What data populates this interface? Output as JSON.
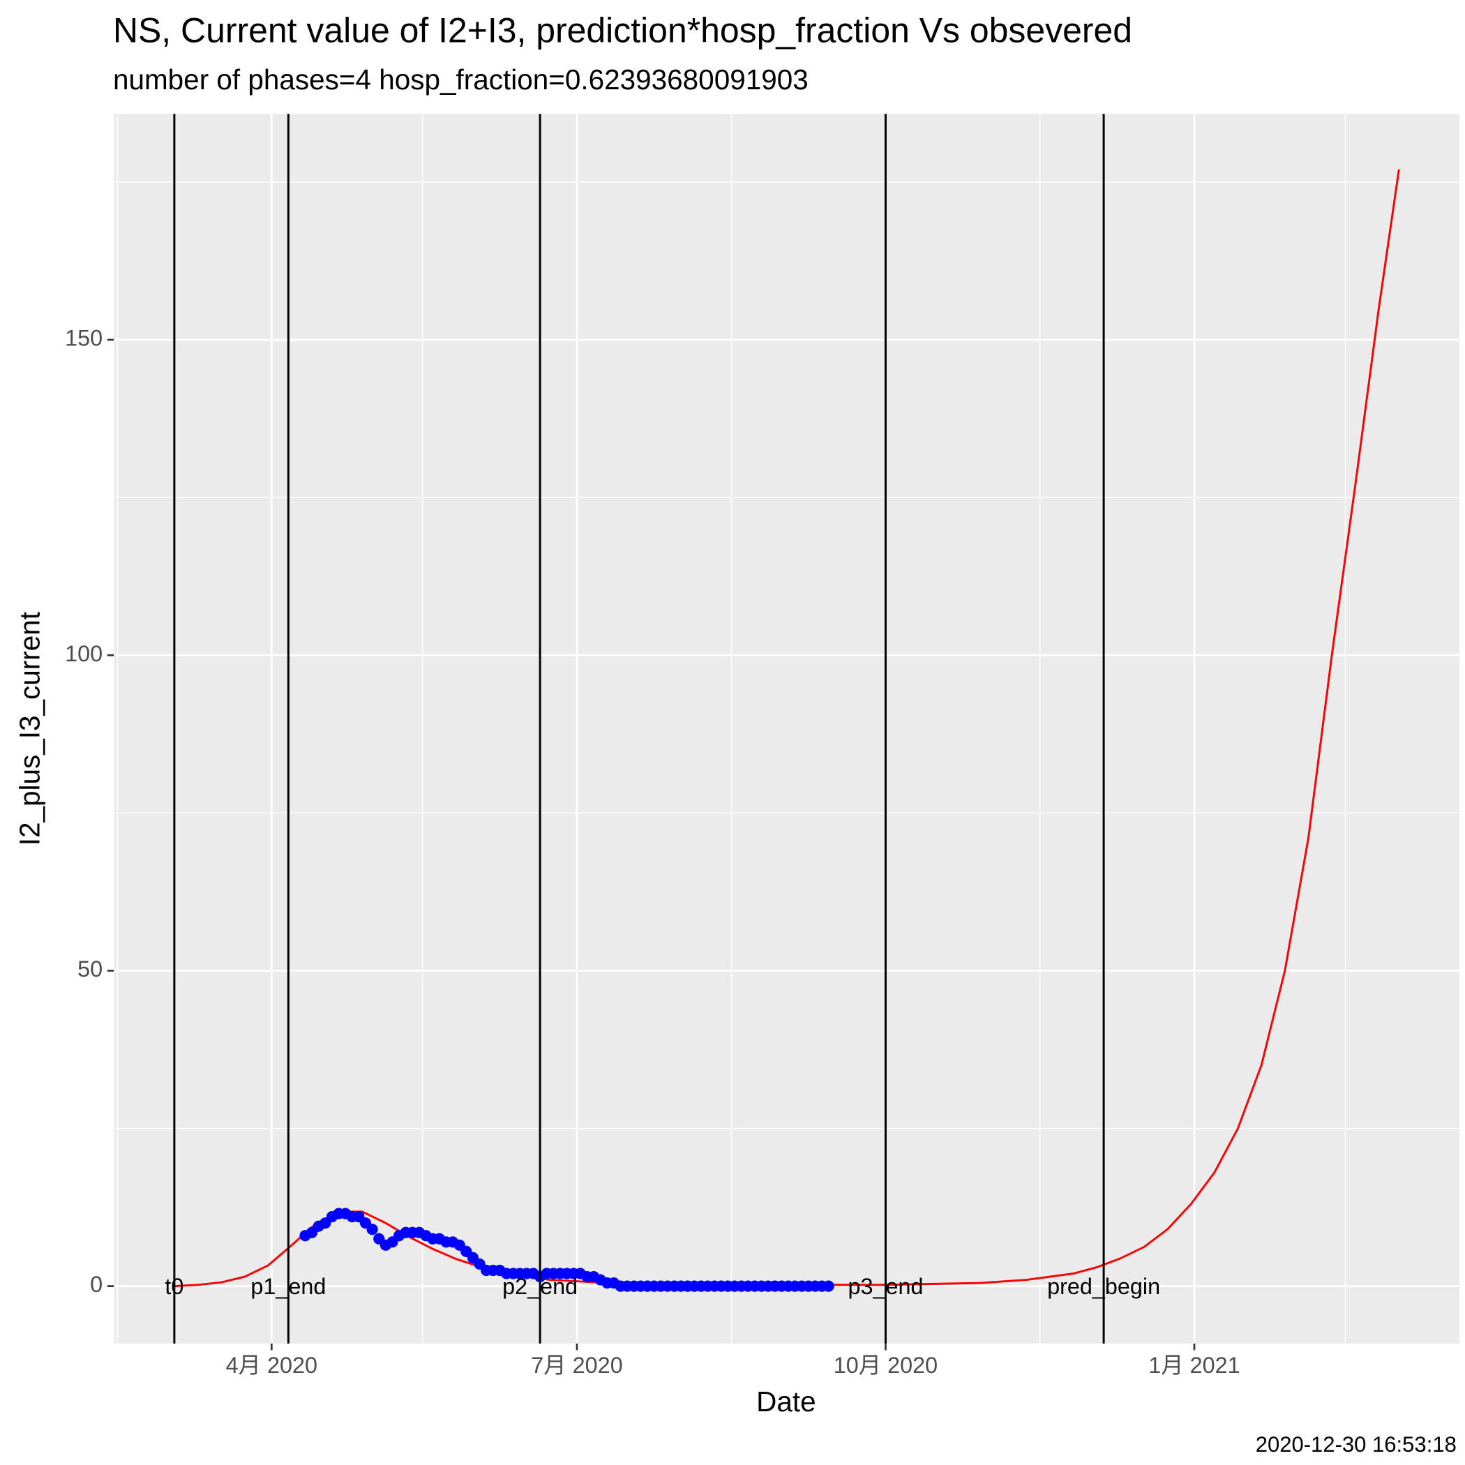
{
  "chart_data": {
    "type": "line",
    "title": "NS, Current value of I2+I3, prediction*hosp_fraction Vs obsevered",
    "subtitle": "number of phases=4   hosp_fraction=0.62393680091903",
    "x_label": "Date",
    "y_label": "I2_plus_I3_current",
    "caption": "2020-12-30 16:53:18",
    "xlim": [
      "2020-02-14",
      "2021-03-21"
    ],
    "xticks": [
      {
        "value": "2020-04-01",
        "label": "4月 2020"
      },
      {
        "value": "2020-07-01",
        "label": "7月 2020"
      },
      {
        "value": "2020-10-01",
        "label": "10月 2020"
      },
      {
        "value": "2021-01-01",
        "label": "1月 2021"
      }
    ],
    "xminor": [
      "2020-02-15",
      "2020-05-16",
      "2020-08-16",
      "2020-11-16",
      "2021-02-15"
    ],
    "ylim": [
      -9.1,
      185.8
    ],
    "yticks": [
      0,
      50,
      100,
      150
    ],
    "yminor": [
      25,
      75,
      125,
      175
    ],
    "grid": true,
    "vline_label_y": 0,
    "vlines": [
      {
        "x": "2020-03-03",
        "label": "t0"
      },
      {
        "x": "2020-04-06",
        "label": "p1_end"
      },
      {
        "x": "2020-06-20",
        "label": "p2_end"
      },
      {
        "x": "2020-10-01",
        "label": "p3_end"
      },
      {
        "x": "2020-12-05",
        "label": "pred_begin"
      }
    ],
    "series": [
      {
        "color": "#ff0000",
        "marker": false,
        "x": [
          "2020-03-03",
          "2020-03-10",
          "2020-03-17",
          "2020-03-24",
          "2020-03-31",
          "2020-04-07",
          "2020-04-14",
          "2020-04-21",
          "2020-04-28",
          "2020-05-05",
          "2020-05-12",
          "2020-05-19",
          "2020-05-26",
          "2020-06-02",
          "2020-06-09",
          "2020-06-16",
          "2020-06-23",
          "2020-07-07",
          "2020-07-21",
          "2020-08-04",
          "2020-09-01",
          "2020-10-01",
          "2020-10-29",
          "2020-11-12",
          "2020-11-26",
          "2020-12-03",
          "2020-12-10",
          "2020-12-17",
          "2020-12-24",
          "2020-12-31",
          "2021-01-07",
          "2021-01-14",
          "2021-01-21",
          "2021-01-28",
          "2021-02-04",
          "2021-02-11",
          "2021-02-18",
          "2021-02-25",
          "2021-03-03"
        ],
        "values": [
          0,
          0.2,
          0.6,
          1.5,
          3.3,
          6.5,
          9.8,
          11.8,
          11.8,
          10.0,
          7.8,
          5.9,
          4.3,
          3.1,
          2.2,
          1.5,
          1.0,
          0.6,
          0.4,
          0.3,
          0.2,
          0.2,
          0.5,
          1.0,
          2.0,
          3.0,
          4.4,
          6.2,
          9,
          13,
          18,
          25,
          35,
          50,
          71,
          100,
          127,
          155,
          177
        ]
      },
      {
        "color": "#0000ff",
        "marker": true,
        "x": [
          "2020-04-11",
          "2020-04-13",
          "2020-04-15",
          "2020-04-17",
          "2020-04-19",
          "2020-04-21",
          "2020-04-23",
          "2020-04-25",
          "2020-04-27",
          "2020-04-29",
          "2020-05-01",
          "2020-05-03",
          "2020-05-05",
          "2020-05-07",
          "2020-05-09",
          "2020-05-11",
          "2020-05-13",
          "2020-05-15",
          "2020-05-17",
          "2020-05-19",
          "2020-05-21",
          "2020-05-23",
          "2020-05-25",
          "2020-05-27",
          "2020-05-29",
          "2020-05-31",
          "2020-06-02",
          "2020-06-04",
          "2020-06-06",
          "2020-06-08",
          "2020-06-10",
          "2020-06-12",
          "2020-06-14",
          "2020-06-16",
          "2020-06-18",
          "2020-06-20",
          "2020-06-22",
          "2020-06-24",
          "2020-06-26",
          "2020-06-28",
          "2020-06-30",
          "2020-07-02",
          "2020-07-04",
          "2020-07-06",
          "2020-07-08",
          "2020-07-10",
          "2020-07-12",
          "2020-07-14",
          "2020-07-16",
          "2020-07-18",
          "2020-07-20",
          "2020-07-22",
          "2020-07-24",
          "2020-07-26",
          "2020-07-28",
          "2020-07-30",
          "2020-08-01",
          "2020-08-03",
          "2020-08-05",
          "2020-08-07",
          "2020-08-09",
          "2020-08-11",
          "2020-08-13",
          "2020-08-15",
          "2020-08-17",
          "2020-08-19",
          "2020-08-21",
          "2020-08-23",
          "2020-08-25",
          "2020-08-27",
          "2020-08-29",
          "2020-08-31",
          "2020-09-02",
          "2020-09-04",
          "2020-09-06",
          "2020-09-08",
          "2020-09-10",
          "2020-09-12",
          "2020-09-14"
        ],
        "values": [
          8,
          8.5,
          9.5,
          10,
          11,
          11.5,
          11.5,
          11,
          11,
          10,
          9,
          7.5,
          6.5,
          7,
          8,
          8.5,
          8.5,
          8.5,
          8,
          7.5,
          7.5,
          7,
          7,
          6.5,
          5.5,
          4.5,
          3.5,
          2.5,
          2.5,
          2.5,
          2,
          2,
          2,
          2,
          2,
          1.5,
          2,
          2,
          2,
          2,
          2,
          2,
          1.5,
          1.5,
          1,
          0.5,
          0.5,
          0,
          0,
          0,
          0,
          0,
          0,
          0,
          0,
          0,
          0,
          0,
          0,
          0,
          0,
          0,
          0,
          0,
          0,
          0,
          0,
          0,
          0,
          0,
          0,
          0,
          0,
          0,
          0,
          0,
          0,
          0,
          0
        ]
      }
    ]
  }
}
